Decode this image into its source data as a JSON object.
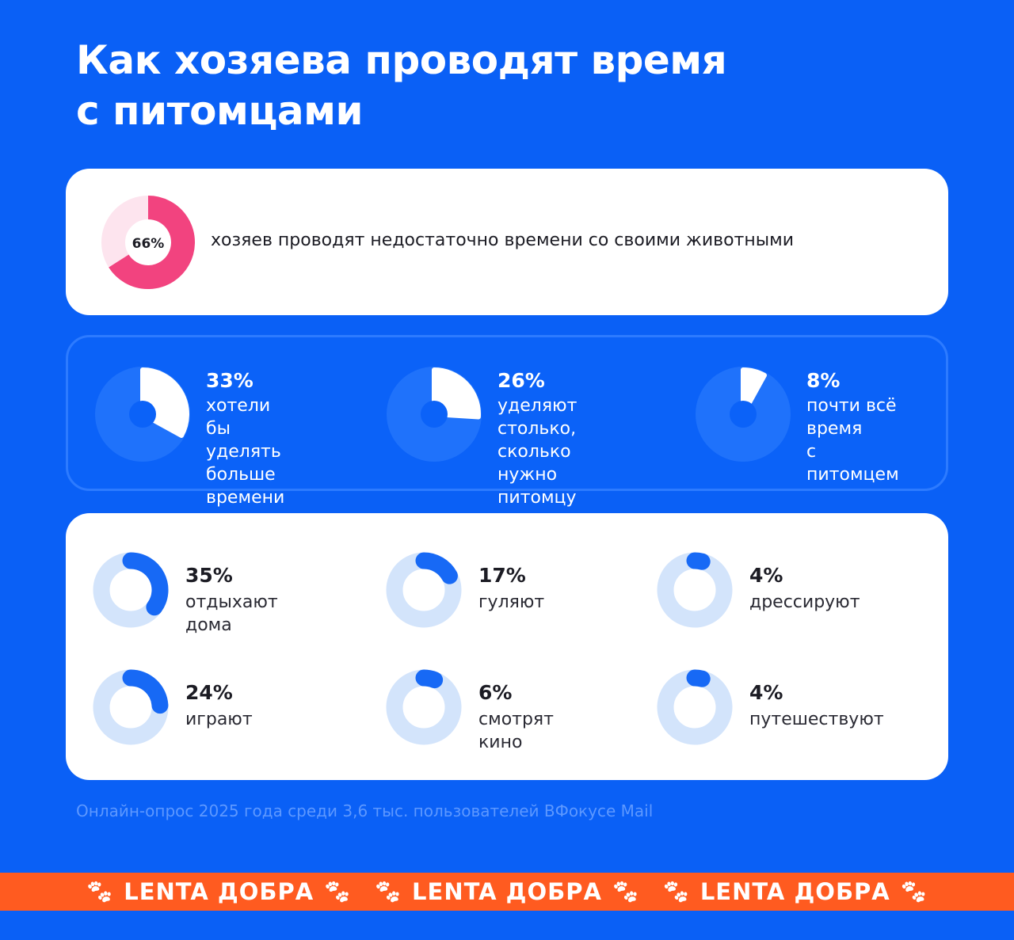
{
  "title_line1": "Как хозяева проводят время",
  "title_line2": "с питомцами",
  "colors": {
    "background": "#0a60f6",
    "pink": "#f2437f",
    "pink_track": "#fde4ee",
    "blue_arc": "#1769f5",
    "blue_track": "#d3e4fb",
    "banner": "#ff5b20"
  },
  "chart_data": [
    {
      "type": "pie",
      "variant": "donut",
      "values": [
        66
      ],
      "labels": [
        "66%"
      ],
      "caption": "хозяев проводят недостаточно времени со своими животными"
    },
    {
      "type": "pie",
      "items": [
        {
          "value": 33,
          "label": "33%",
          "caption": "хотели бы\nуделять больше\nвремени"
        },
        {
          "value": 26,
          "label": "26%",
          "caption": "уделяют столько,\nсколько нужно\nпитомцу"
        },
        {
          "value": 8,
          "label": "8%",
          "caption": "почти всё\nвремя\nс питомцем"
        }
      ]
    },
    {
      "type": "pie",
      "variant": "donut",
      "items": [
        {
          "value": 35,
          "label": "35%",
          "caption": "отдыхают дома"
        },
        {
          "value": 17,
          "label": "17%",
          "caption": "гуляют"
        },
        {
          "value": 4,
          "label": "4%",
          "caption": "дрессируют"
        },
        {
          "value": 24,
          "label": "24%",
          "caption": "играют"
        },
        {
          "value": 6,
          "label": "6%",
          "caption": "смотрят кино"
        },
        {
          "value": 4,
          "label": "4%",
          "caption": "путешествуют"
        }
      ]
    }
  ],
  "source": "Онлайн-опрос 2025 года среди 3,6 тыс. пользователей ВФокусе Mail",
  "banner": {
    "brand": "LENTA ДОБРА",
    "icon": "paw-icon",
    "repeats": 3
  }
}
